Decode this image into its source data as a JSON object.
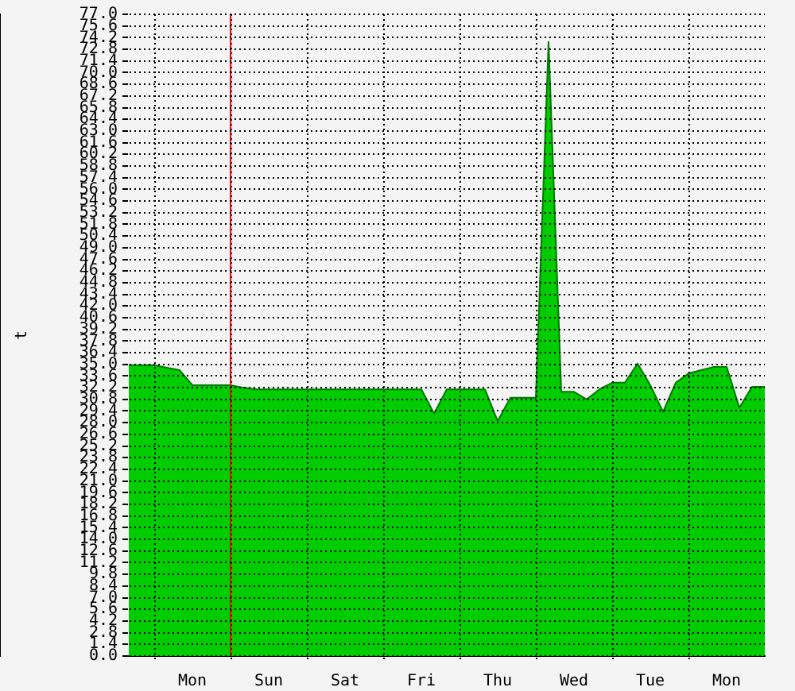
{
  "chart_data": {
    "type": "area",
    "ylabel": "t",
    "legend": false,
    "grid": true,
    "categories": [
      null,
      null,
      null,
      null,
      null,
      "Mon",
      null,
      null,
      null,
      null,
      null,
      "Sun",
      null,
      null,
      null,
      null,
      null,
      "Sat",
      null,
      null,
      null,
      null,
      null,
      "Fri",
      null,
      null,
      null,
      null,
      null,
      "Thu",
      null,
      null,
      null,
      null,
      null,
      "Wed",
      null,
      null,
      null,
      null,
      null,
      "Tue",
      null,
      null,
      null,
      null,
      null,
      "Mon",
      null,
      null,
      null
    ],
    "series": [
      {
        "color": "#00cc00",
        "values": [
          34.9,
          34.9,
          34.9,
          34.6,
          34.3,
          32.5,
          32.5,
          32.5,
          32.5,
          32.2,
          32.0,
          32.0,
          32.0,
          32.0,
          32.0,
          32.0,
          32.0,
          32.0,
          32.0,
          32.0,
          32.0,
          32.0,
          32.0,
          32.0,
          29.1,
          32.0,
          32.0,
          32.0,
          32.0,
          28.2,
          31.0,
          31.0,
          31.0,
          73.7,
          31.7,
          31.7,
          30.8,
          32.0,
          32.8,
          32.8,
          35.1,
          32.5,
          29.3,
          32.8,
          33.9,
          34.3,
          34.7,
          34.7,
          29.8,
          32.3,
          32.3
        ]
      }
    ],
    "ylim": [
      0,
      77
    ],
    "yticks": [
      {
        "value": 0,
        "label": "0.0"
      },
      {
        "value": 1.4,
        "label": "1.4"
      },
      {
        "value": 2.8,
        "label": "2.8"
      },
      {
        "value": 4.2,
        "label": "4.2"
      },
      {
        "value": 5.6,
        "label": "5.6"
      },
      {
        "value": 7,
        "label": "7.0"
      },
      {
        "value": 8.4,
        "label": "8.4"
      },
      {
        "value": 9.8,
        "label": "9.8"
      },
      {
        "value": 11.2,
        "label": "11.2"
      },
      {
        "value": 12.6,
        "label": "12.6"
      },
      {
        "value": 14,
        "label": "14.0"
      },
      {
        "value": 15.4,
        "label": "15.4"
      },
      {
        "value": 16.8,
        "label": "16.8"
      },
      {
        "value": 18.2,
        "label": "18.2"
      },
      {
        "value": 19.6,
        "label": "19.6"
      },
      {
        "value": 21,
        "label": "21.0"
      },
      {
        "value": 22.4,
        "label": "22.4"
      },
      {
        "value": 23.8,
        "label": "23.8"
      },
      {
        "value": 25.2,
        "label": "25.2"
      },
      {
        "value": 26.6,
        "label": "26.6"
      },
      {
        "value": 28,
        "label": "28.0"
      },
      {
        "value": 29.4,
        "label": "29.4"
      },
      {
        "value": 30.8,
        "label": "30.8"
      },
      {
        "value": 32.2,
        "label": "32.2"
      },
      {
        "value": 33.6,
        "label": "33.6"
      },
      {
        "value": 35,
        "label": "35.0"
      },
      {
        "value": 36.4,
        "label": "36.4"
      },
      {
        "value": 37.8,
        "label": "37.8"
      },
      {
        "value": 39.2,
        "label": "39.2"
      },
      {
        "value": 40.6,
        "label": "40.6"
      },
      {
        "value": 42,
        "label": "42.0"
      },
      {
        "value": 43.4,
        "label": "43.4"
      },
      {
        "value": 44.8,
        "label": "44.8"
      },
      {
        "value": 46.2,
        "label": "46.2"
      },
      {
        "value": 47.6,
        "label": "47.6"
      },
      {
        "value": 49,
        "label": "49.0"
      },
      {
        "value": 50.4,
        "label": "50.4"
      },
      {
        "value": 51.8,
        "label": "51.8"
      },
      {
        "value": 53.2,
        "label": "53.2"
      },
      {
        "value": 54.6,
        "label": "54.6"
      },
      {
        "value": 56,
        "label": "56.0"
      },
      {
        "value": 57.4,
        "label": "57.4"
      },
      {
        "value": 58.8,
        "label": "58.8"
      },
      {
        "value": 60.2,
        "label": "60.2"
      },
      {
        "value": 61.6,
        "label": "61.6"
      },
      {
        "value": 63,
        "label": "63.0"
      },
      {
        "value": 64.4,
        "label": "64.4"
      },
      {
        "value": 65.8,
        "label": "65.8"
      },
      {
        "value": 67.2,
        "label": "67.2"
      },
      {
        "value": 68.6,
        "label": "68.6"
      },
      {
        "value": 70,
        "label": "70.0"
      },
      {
        "value": 71.4,
        "label": "71.4"
      },
      {
        "value": 72.8,
        "label": "72.8"
      },
      {
        "value": 74.2,
        "label": "74.2"
      },
      {
        "value": 75.6,
        "label": "75.6"
      },
      {
        "value": 77,
        "label": "77.0"
      }
    ]
  }
}
